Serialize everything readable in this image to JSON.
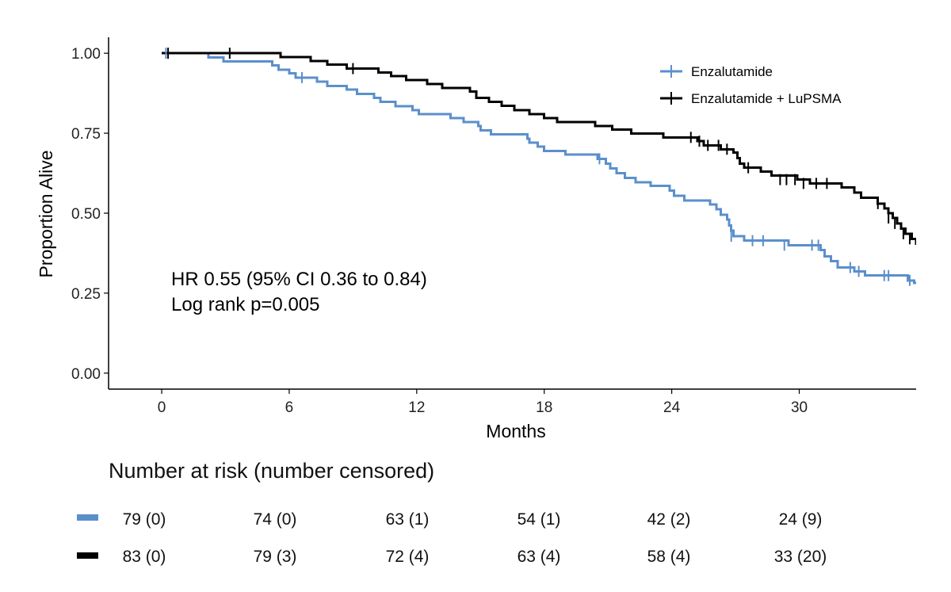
{
  "chart_data": {
    "type": "line",
    "subtype": "kaplan-meier step",
    "xlabel": "Months",
    "ylabel": "Proportion Alive",
    "xlim": [
      -2.5,
      35.5
    ],
    "ylim": [
      -0.05,
      1.05
    ],
    "x_ticks": [
      "0",
      "6",
      "12",
      "18",
      "24",
      "30"
    ],
    "x_tick_values": [
      0,
      6,
      12,
      18,
      24,
      30
    ],
    "y_ticks": [
      "0.00",
      "0.25",
      "0.50",
      "0.75",
      "1.00"
    ],
    "y_tick_values": [
      0,
      0.25,
      0.5,
      0.75,
      1.0
    ],
    "grid": false,
    "legend_position": "top-right",
    "annotations": [
      "HR 0.55 (95% CI 0.36 to 0.84)",
      "Log rank p=0.005"
    ],
    "series": [
      {
        "name": "Enzalutamide",
        "color": "#5b8fcb",
        "steps": [
          [
            0,
            1.0
          ],
          [
            2.2,
            0.987
          ],
          [
            2.9,
            0.975
          ],
          [
            5.2,
            0.962
          ],
          [
            5.5,
            0.949
          ],
          [
            6.0,
            0.937
          ],
          [
            6.3,
            0.924
          ],
          [
            7.3,
            0.911
          ],
          [
            7.8,
            0.898
          ],
          [
            8.7,
            0.886
          ],
          [
            9.2,
            0.873
          ],
          [
            10.0,
            0.861
          ],
          [
            10.3,
            0.848
          ],
          [
            11.0,
            0.835
          ],
          [
            11.8,
            0.822
          ],
          [
            12.1,
            0.81
          ],
          [
            13.6,
            0.797
          ],
          [
            14.2,
            0.785
          ],
          [
            14.9,
            0.772
          ],
          [
            15.0,
            0.759
          ],
          [
            15.5,
            0.746
          ],
          [
            17.2,
            0.733
          ],
          [
            17.3,
            0.72
          ],
          [
            17.7,
            0.708
          ],
          [
            18.0,
            0.695
          ],
          [
            19.0,
            0.683
          ],
          [
            20.5,
            0.67
          ],
          [
            20.9,
            0.655
          ],
          [
            21.1,
            0.64
          ],
          [
            21.4,
            0.625
          ],
          [
            21.8,
            0.61
          ],
          [
            22.3,
            0.597
          ],
          [
            23.0,
            0.585
          ],
          [
            23.9,
            0.57
          ],
          [
            24.1,
            0.555
          ],
          [
            24.6,
            0.54
          ],
          [
            25.8,
            0.527
          ],
          [
            26.1,
            0.512
          ],
          [
            26.3,
            0.495
          ],
          [
            26.6,
            0.48
          ],
          [
            26.7,
            0.462
          ],
          [
            26.8,
            0.445
          ],
          [
            26.9,
            0.428
          ],
          [
            27.4,
            0.414
          ],
          [
            29.5,
            0.4
          ],
          [
            31.0,
            0.385
          ],
          [
            31.2,
            0.365
          ],
          [
            31.5,
            0.35
          ],
          [
            31.8,
            0.33
          ],
          [
            32.6,
            0.318
          ],
          [
            33.1,
            0.305
          ],
          [
            35.1,
            0.29
          ],
          [
            35.4,
            0.282
          ]
        ],
        "end_x": 35.5,
        "censored": [
          [
            0.2,
            1.0
          ],
          [
            6.6,
            0.924
          ],
          [
            20.6,
            0.67
          ],
          [
            26.8,
            0.428
          ],
          [
            27.8,
            0.414
          ],
          [
            28.3,
            0.414
          ],
          [
            29.3,
            0.4
          ],
          [
            30.6,
            0.4
          ],
          [
            30.9,
            0.4
          ],
          [
            32.4,
            0.33
          ],
          [
            32.8,
            0.318
          ],
          [
            34.0,
            0.305
          ],
          [
            34.2,
            0.305
          ],
          [
            35.2,
            0.29
          ]
        ]
      },
      {
        "name": "Enzalutamide + LuPSMA",
        "color": "#000000",
        "steps": [
          [
            0,
            1.0
          ],
          [
            5.6,
            0.988
          ],
          [
            7.0,
            0.976
          ],
          [
            7.8,
            0.964
          ],
          [
            8.7,
            0.952
          ],
          [
            10.2,
            0.94
          ],
          [
            10.8,
            0.928
          ],
          [
            11.5,
            0.916
          ],
          [
            12.5,
            0.904
          ],
          [
            13.2,
            0.892
          ],
          [
            14.5,
            0.88
          ],
          [
            14.8,
            0.86
          ],
          [
            15.4,
            0.848
          ],
          [
            16.0,
            0.836
          ],
          [
            16.6,
            0.822
          ],
          [
            17.3,
            0.81
          ],
          [
            18.0,
            0.797
          ],
          [
            18.6,
            0.785
          ],
          [
            20.4,
            0.773
          ],
          [
            21.2,
            0.761
          ],
          [
            22.1,
            0.749
          ],
          [
            23.6,
            0.737
          ],
          [
            25.2,
            0.725
          ],
          [
            25.5,
            0.712
          ],
          [
            26.3,
            0.7
          ],
          [
            26.9,
            0.69
          ],
          [
            27.1,
            0.672
          ],
          [
            27.2,
            0.655
          ],
          [
            27.4,
            0.642
          ],
          [
            28.2,
            0.63
          ],
          [
            28.7,
            0.618
          ],
          [
            29.9,
            0.605
          ],
          [
            30.5,
            0.593
          ],
          [
            32.0,
            0.58
          ],
          [
            32.6,
            0.565
          ],
          [
            32.9,
            0.548
          ],
          [
            33.7,
            0.53
          ],
          [
            34.0,
            0.515
          ],
          [
            34.2,
            0.5
          ],
          [
            34.4,
            0.485
          ],
          [
            34.6,
            0.468
          ],
          [
            34.8,
            0.452
          ],
          [
            35.0,
            0.436
          ],
          [
            35.3,
            0.42
          ],
          [
            35.5,
            0.404
          ],
          [
            35.7,
            0.388
          ],
          [
            35.9,
            0.37
          ],
          [
            36.0,
            0.355
          ]
        ],
        "end_x": 36.0,
        "censored": [
          [
            0.3,
            1.0
          ],
          [
            3.2,
            1.0
          ],
          [
            9.0,
            0.952
          ],
          [
            24.9,
            0.737
          ],
          [
            25.3,
            0.725
          ],
          [
            25.7,
            0.712
          ],
          [
            26.2,
            0.712
          ],
          [
            26.6,
            0.7
          ],
          [
            27.6,
            0.642
          ],
          [
            29.1,
            0.605
          ],
          [
            29.4,
            0.605
          ],
          [
            29.8,
            0.605
          ],
          [
            30.2,
            0.593
          ],
          [
            30.8,
            0.593
          ],
          [
            31.3,
            0.593
          ],
          [
            33.7,
            0.53
          ],
          [
            34.2,
            0.485
          ],
          [
            34.5,
            0.468
          ],
          [
            34.9,
            0.436
          ],
          [
            35.2,
            0.42
          ]
        ]
      }
    ]
  },
  "risk_table": {
    "title": "Number at risk (number censored)",
    "rows": [
      {
        "name": "Enzalutamide",
        "color": "#5b8fcb",
        "cells": [
          "79 (0)",
          "74 (0)",
          "63 (1)",
          "54 (1)",
          "42 (2)",
          "24 (9)"
        ]
      },
      {
        "name": "Enzalutamide + LuPSMA",
        "color": "#000000",
        "cells": [
          "83 (0)",
          "79 (3)",
          "72 (4)",
          "63 (4)",
          "58 (4)",
          "33 (20)"
        ]
      }
    ]
  }
}
